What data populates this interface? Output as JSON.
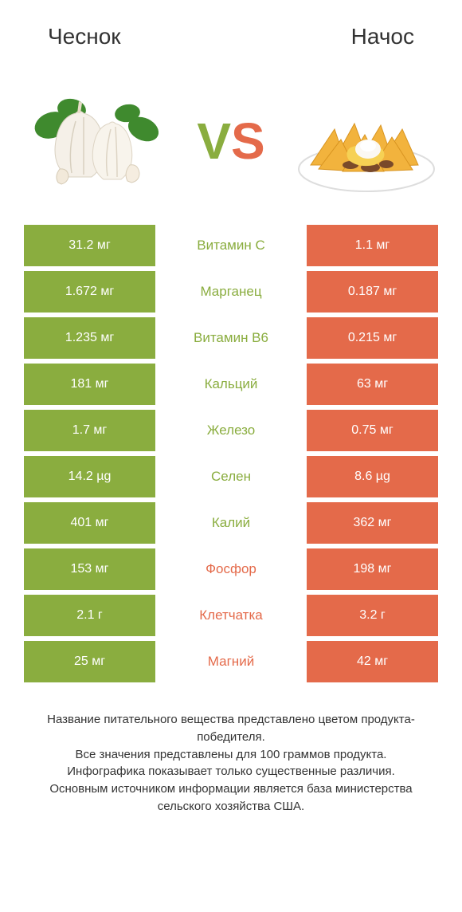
{
  "colors": {
    "left_bar": "#8aad3f",
    "right_bar": "#e46a4a",
    "left_text": "#8aad3f",
    "right_text": "#e46a4a",
    "cell_text": "#ffffff",
    "title_text": "#333333",
    "footer_text": "#333333",
    "background": "#ffffff"
  },
  "typography": {
    "title_fontsize": 28,
    "vs_fontsize": 64,
    "cell_fontsize": 16,
    "label_fontsize": 17,
    "footer_fontsize": 15
  },
  "header": {
    "left": "Чеснок",
    "right": "Начос"
  },
  "vs": {
    "v": "V",
    "s": "S"
  },
  "rows": [
    {
      "left": "31.2 мг",
      "label": "Витамин C",
      "right": "1.1 мг",
      "winner": "left"
    },
    {
      "left": "1.672 мг",
      "label": "Марганец",
      "right": "0.187 мг",
      "winner": "left"
    },
    {
      "left": "1.235 мг",
      "label": "Витамин B6",
      "right": "0.215 мг",
      "winner": "left"
    },
    {
      "left": "181 мг",
      "label": "Кальций",
      "right": "63 мг",
      "winner": "left"
    },
    {
      "left": "1.7 мг",
      "label": "Железо",
      "right": "0.75 мг",
      "winner": "left"
    },
    {
      "left": "14.2 µg",
      "label": "Селен",
      "right": "8.6 µg",
      "winner": "left"
    },
    {
      "left": "401 мг",
      "label": "Калий",
      "right": "362 мг",
      "winner": "left"
    },
    {
      "left": "153 мг",
      "label": "Фосфор",
      "right": "198 мг",
      "winner": "right"
    },
    {
      "left": "2.1 г",
      "label": "Клетчатка",
      "right": "3.2 г",
      "winner": "right"
    },
    {
      "left": "25 мг",
      "label": "Магний",
      "right": "42 мг",
      "winner": "right"
    }
  ],
  "footer": {
    "line1": "Название питательного вещества представлено цветом продукта-победителя.",
    "line2": "Все значения представлены для 100 граммов продукта.",
    "line3": "Инфографика показывает только существенные различия.",
    "line4": "Основным источником информации является база министерства сельского хозяйства США."
  }
}
